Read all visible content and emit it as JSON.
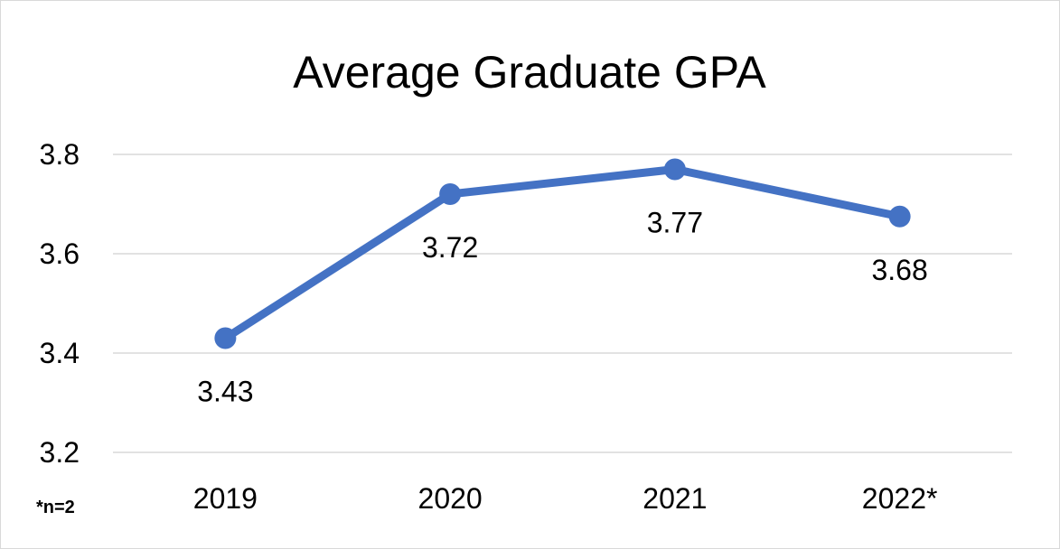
{
  "chart_data": {
    "type": "line",
    "title": "Average Graduate GPA",
    "categories": [
      "2019",
      "2020",
      "2021",
      "2022*"
    ],
    "series": [
      {
        "values": [
          3.43,
          3.72,
          3.77,
          3.675
        ],
        "labels": [
          "3.43",
          "3.72",
          "3.77",
          "3.68"
        ]
      }
    ],
    "ylim": [
      3.2,
      3.8
    ],
    "yticks": [
      "3.2",
      "3.4",
      "3.6",
      "3.8"
    ],
    "grid": true,
    "footnote": "*n=2",
    "colors": {
      "line": "#4472c4",
      "grid": "#d9d9d9"
    }
  }
}
